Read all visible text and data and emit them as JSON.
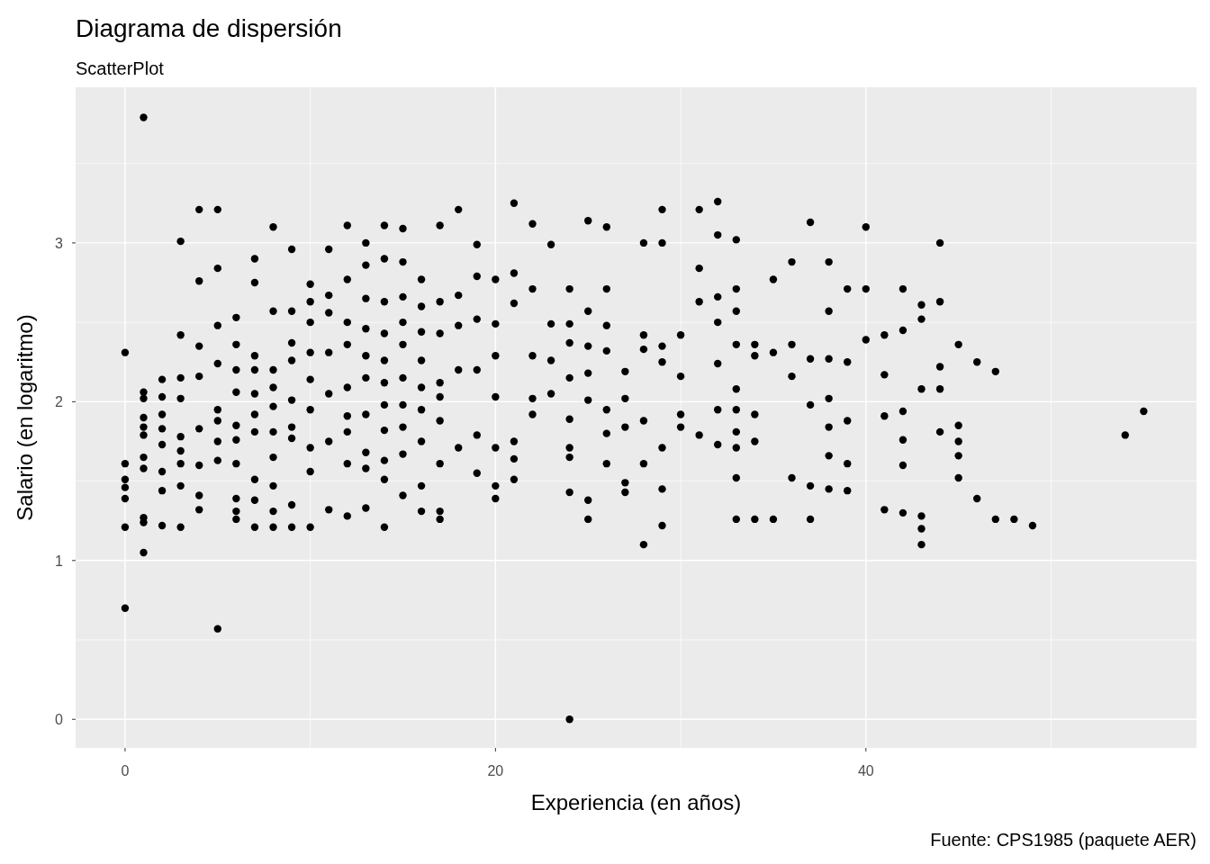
{
  "chart_data": {
    "type": "scatter",
    "title": "Diagrama de dispersión",
    "subtitle": "ScatterPlot",
    "xlabel": "Experiencia (en años)",
    "ylabel": "Salario (en logaritmo)",
    "annotations": [
      "Fuente: CPS1985 (paquete AER)"
    ],
    "xlim": [
      -2.67,
      57.85
    ],
    "ylim": [
      -0.18,
      3.98
    ],
    "xticks": [
      0,
      20,
      40
    ],
    "yticks": [
      0,
      1,
      2,
      3
    ],
    "grid": true,
    "marker": "circle",
    "series": [
      {
        "color": "#000000",
        "x": [
          0,
          0,
          0,
          0,
          0,
          0,
          0,
          1,
          1,
          1,
          1,
          1,
          1,
          1,
          1,
          1,
          1,
          1,
          2,
          2,
          2,
          2,
          2,
          2,
          2,
          2,
          3,
          3,
          3,
          3,
          3,
          3,
          3,
          3,
          3,
          4,
          4,
          4,
          4,
          4,
          4,
          4,
          4,
          5,
          5,
          5,
          5,
          5,
          5,
          5,
          5,
          5,
          6,
          6,
          6,
          6,
          6,
          6,
          6,
          6,
          6,
          6,
          7,
          7,
          7,
          7,
          7,
          7,
          7,
          7,
          7,
          7,
          8,
          8,
          8,
          8,
          8,
          8,
          8,
          8,
          8,
          8,
          9,
          9,
          9,
          9,
          9,
          9,
          9,
          9,
          9,
          10,
          10,
          10,
          10,
          10,
          10,
          10,
          10,
          10,
          11,
          11,
          11,
          11,
          11,
          11,
          11,
          12,
          12,
          12,
          12,
          12,
          12,
          12,
          12,
          12,
          13,
          13,
          13,
          13,
          13,
          13,
          13,
          13,
          13,
          13,
          14,
          14,
          14,
          14,
          14,
          14,
          14,
          14,
          14,
          14,
          14,
          15,
          15,
          15,
          15,
          15,
          15,
          15,
          15,
          15,
          15,
          16,
          16,
          16,
          16,
          16,
          16,
          16,
          16,
          16,
          17,
          17,
          17,
          17,
          17,
          17,
          17,
          17,
          17,
          18,
          18,
          18,
          18,
          18,
          19,
          19,
          19,
          19,
          19,
          19,
          20,
          20,
          20,
          20,
          20,
          20,
          20,
          21,
          21,
          21,
          21,
          21,
          21,
          22,
          22,
          22,
          22,
          22,
          23,
          23,
          23,
          23,
          24,
          24,
          24,
          24,
          24,
          24,
          24,
          24,
          24,
          25,
          25,
          25,
          25,
          25,
          25,
          25,
          26,
          26,
          26,
          26,
          26,
          26,
          26,
          27,
          27,
          27,
          27,
          27,
          28,
          28,
          28,
          28,
          28,
          28,
          29,
          29,
          29,
          29,
          29,
          29,
          29,
          30,
          30,
          30,
          30,
          31,
          31,
          31,
          31,
          32,
          32,
          32,
          32,
          32,
          32,
          32,
          33,
          33,
          33,
          33,
          33,
          33,
          33,
          33,
          33,
          33,
          34,
          34,
          34,
          34,
          34,
          35,
          35,
          35,
          36,
          36,
          36,
          36,
          37,
          37,
          37,
          37,
          37,
          38,
          38,
          38,
          38,
          38,
          38,
          38,
          39,
          39,
          39,
          39,
          39,
          40,
          40,
          40,
          41,
          41,
          41,
          41,
          42,
          42,
          42,
          42,
          42,
          42,
          43,
          43,
          43,
          43,
          43,
          43,
          44,
          44,
          44,
          44,
          44,
          45,
          45,
          45,
          45,
          45,
          46,
          46,
          47,
          47,
          48,
          49,
          54,
          55
        ],
        "values": [
          2.31,
          1.61,
          1.51,
          1.46,
          1.39,
          1.21,
          0.7,
          3.79,
          2.06,
          2.02,
          1.9,
          1.84,
          1.79,
          1.65,
          1.58,
          1.27,
          1.24,
          1.05,
          2.14,
          2.03,
          1.92,
          1.83,
          1.73,
          1.56,
          1.44,
          1.22,
          3.01,
          2.42,
          2.15,
          2.02,
          1.78,
          1.69,
          1.61,
          1.47,
          1.21,
          3.21,
          2.76,
          2.35,
          2.16,
          1.83,
          1.6,
          1.41,
          1.32,
          3.21,
          2.84,
          2.48,
          2.24,
          1.95,
          1.88,
          1.75,
          1.63,
          0.57,
          2.53,
          2.36,
          2.2,
          2.06,
          1.85,
          1.76,
          1.61,
          1.39,
          1.31,
          1.26,
          2.9,
          2.75,
          2.29,
          2.2,
          2.05,
          1.92,
          1.81,
          1.51,
          1.38,
          1.21,
          3.1,
          2.57,
          2.2,
          2.09,
          1.97,
          1.81,
          1.65,
          1.47,
          1.31,
          1.21,
          2.96,
          2.57,
          2.37,
          2.26,
          2.01,
          1.84,
          1.77,
          1.35,
          1.21,
          2.74,
          2.63,
          2.5,
          2.31,
          2.14,
          1.95,
          1.71,
          1.56,
          1.21,
          2.96,
          2.67,
          2.56,
          2.31,
          2.05,
          1.75,
          1.32,
          3.11,
          2.77,
          2.5,
          2.36,
          2.09,
          1.91,
          1.81,
          1.61,
          1.28,
          3.0,
          2.86,
          2.65,
          2.46,
          2.29,
          2.15,
          1.92,
          1.68,
          1.58,
          1.33,
          3.11,
          2.9,
          2.63,
          2.43,
          2.26,
          2.12,
          1.98,
          1.82,
          1.63,
          1.51,
          1.21,
          3.09,
          2.88,
          2.66,
          2.5,
          2.36,
          2.15,
          1.98,
          1.84,
          1.67,
          1.41,
          2.77,
          2.6,
          2.44,
          2.26,
          2.09,
          1.95,
          1.75,
          1.47,
          1.31,
          3.11,
          2.63,
          2.43,
          2.12,
          2.03,
          1.88,
          1.61,
          1.31,
          1.26,
          3.21,
          2.67,
          2.48,
          2.2,
          1.71,
          2.99,
          2.79,
          2.52,
          2.2,
          1.79,
          1.55,
          2.77,
          2.49,
          2.29,
          2.03,
          1.71,
          1.47,
          1.39,
          3.25,
          2.81,
          2.62,
          1.75,
          1.64,
          1.51,
          3.12,
          2.71,
          2.29,
          2.02,
          1.92,
          2.99,
          2.49,
          2.26,
          2.05,
          2.71,
          2.49,
          2.37,
          2.15,
          1.89,
          1.71,
          1.65,
          1.43,
          0.0,
          3.14,
          2.57,
          2.35,
          2.18,
          2.01,
          1.38,
          1.26,
          3.1,
          2.71,
          2.48,
          2.32,
          1.95,
          1.8,
          1.61,
          2.19,
          2.02,
          1.84,
          1.49,
          1.43,
          3.0,
          2.42,
          2.33,
          1.88,
          1.61,
          1.1,
          3.21,
          3.0,
          2.35,
          2.25,
          1.71,
          1.45,
          1.22,
          2.42,
          2.16,
          1.92,
          1.84,
          3.21,
          2.84,
          2.63,
          1.79,
          3.26,
          3.05,
          2.66,
          2.5,
          2.24,
          1.95,
          1.73,
          3.02,
          2.71,
          2.57,
          2.36,
          2.08,
          1.95,
          1.81,
          1.71,
          1.52,
          1.26,
          2.36,
          2.29,
          1.92,
          1.75,
          1.26,
          2.77,
          2.31,
          1.26,
          2.88,
          2.36,
          2.16,
          1.52,
          3.13,
          2.27,
          1.98,
          1.47,
          1.26,
          2.88,
          2.57,
          2.27,
          2.02,
          1.84,
          1.66,
          1.45,
          2.71,
          2.25,
          1.88,
          1.61,
          1.44,
          3.1,
          2.71,
          2.39,
          2.42,
          2.17,
          1.91,
          1.32,
          2.71,
          2.45,
          1.94,
          1.76,
          1.6,
          1.3,
          2.61,
          2.52,
          2.08,
          1.28,
          1.2,
          1.1,
          3.0,
          2.63,
          2.22,
          2.08,
          1.81,
          2.36,
          1.85,
          1.75,
          1.66,
          1.52,
          2.25,
          1.39,
          2.19,
          1.26,
          1.26,
          1.22,
          1.79,
          1.94
        ]
      }
    ]
  }
}
